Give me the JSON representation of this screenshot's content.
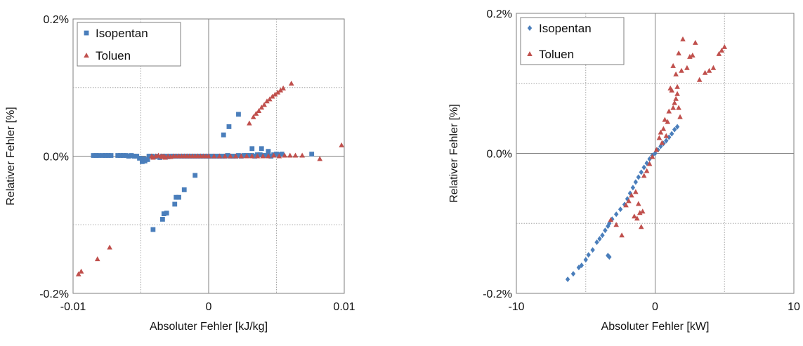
{
  "chart_data": [
    {
      "type": "scatter",
      "xlabel": "Absoluter Fehler [kJ/kg]",
      "ylabel": "Relativer Fehler [%]",
      "xlim": [
        -0.01,
        0.01
      ],
      "ylim": [
        -0.2,
        0.2
      ],
      "x_ticks": [
        "-0.01",
        "0",
        "0.01"
      ],
      "y_ticks": [
        "0.2%",
        "0.0%",
        "-0.2%"
      ],
      "grid": "dotted",
      "legend_position": "top-left",
      "series": [
        {
          "name": "Isopentan",
          "marker": "square",
          "color": "#4a7ebb",
          "points": [
            [
              -0.0085,
              0.001
            ],
            [
              -0.0083,
              0.001
            ],
            [
              -0.0081,
              0.001
            ],
            [
              -0.0078,
              0.001
            ],
            [
              -0.0076,
              0.001
            ],
            [
              -0.0074,
              0.001
            ],
            [
              -0.0072,
              0.001
            ],
            [
              -0.0067,
              0.001
            ],
            [
              -0.0065,
              0.001
            ],
            [
              -0.0063,
              0.001
            ],
            [
              -0.0061,
              0.001
            ],
            [
              -0.0059,
              0.0
            ],
            [
              -0.0057,
              0.001
            ],
            [
              -0.0055,
              0.0
            ],
            [
              -0.0053,
              0.0
            ],
            [
              -0.0051,
              -0.003
            ],
            [
              -0.0049,
              -0.008
            ],
            [
              -0.0048,
              -0.004
            ],
            [
              -0.0047,
              -0.007
            ],
            [
              -0.0045,
              -0.005
            ],
            [
              -0.0044,
              0.0
            ],
            [
              -0.0042,
              0.0
            ],
            [
              -0.004,
              -0.001
            ],
            [
              -0.0038,
              0.0
            ],
            [
              -0.0036,
              -0.002
            ],
            [
              -0.0034,
              0.0
            ],
            [
              -0.0032,
              0.0
            ],
            [
              -0.003,
              -0.001
            ],
            [
              -0.0028,
              0.0
            ],
            [
              -0.0026,
              0.0
            ],
            [
              -0.0024,
              0.0
            ],
            [
              -0.0022,
              0.0
            ],
            [
              -0.002,
              0.0
            ],
            [
              -0.0018,
              0.0
            ],
            [
              -0.0016,
              0.0
            ],
            [
              -0.0014,
              0.0
            ],
            [
              -0.0012,
              0.0
            ],
            [
              -0.001,
              0.0
            ],
            [
              -0.0008,
              0.0
            ],
            [
              -0.0006,
              0.0
            ],
            [
              -0.0004,
              0.0
            ],
            [
              -0.0002,
              0.0
            ],
            [
              0.0,
              0.0
            ],
            [
              0.0002,
              0.0
            ],
            [
              0.0004,
              0.0
            ],
            [
              0.0006,
              0.0
            ],
            [
              0.0008,
              0.0
            ],
            [
              0.001,
              0.0
            ],
            [
              0.0012,
              0.0
            ],
            [
              0.0014,
              0.001
            ],
            [
              0.0016,
              0.0
            ],
            [
              0.0018,
              0.0
            ],
            [
              0.002,
              0.0
            ],
            [
              0.0022,
              0.001
            ],
            [
              0.0024,
              0.0
            ],
            [
              0.0026,
              0.001
            ],
            [
              0.0028,
              0.001
            ],
            [
              0.003,
              0.001
            ],
            [
              0.0032,
              0.001
            ],
            [
              0.0034,
              0.0
            ],
            [
              0.0036,
              0.002
            ],
            [
              0.0038,
              0.002
            ],
            [
              0.004,
              0.001
            ],
            [
              0.0042,
              0.001
            ],
            [
              0.0044,
              0.001
            ],
            [
              0.0046,
              0.0
            ],
            [
              0.0048,
              0.002
            ],
            [
              0.005,
              0.003
            ],
            [
              0.0052,
              0.002
            ],
            [
              0.0054,
              0.003
            ],
            [
              0.0076,
              0.003
            ],
            [
              0.0011,
              0.031
            ],
            [
              0.0015,
              0.043
            ],
            [
              0.0022,
              0.061
            ],
            [
              0.0032,
              0.011
            ],
            [
              0.0039,
              0.011
            ],
            [
              0.0044,
              0.007
            ],
            [
              -0.0041,
              -0.107
            ],
            [
              -0.0034,
              -0.092
            ],
            [
              -0.0033,
              -0.084
            ],
            [
              -0.0031,
              -0.083
            ],
            [
              -0.0025,
              -0.07
            ],
            [
              -0.0024,
              -0.06
            ],
            [
              -0.0022,
              -0.06
            ],
            [
              -0.0018,
              -0.049
            ],
            [
              -0.001,
              -0.028
            ]
          ]
        },
        {
          "name": "Toluen",
          "marker": "triangle",
          "color": "#c0504d",
          "points": [
            [
              -0.0096,
              -0.172
            ],
            [
              -0.0094,
              -0.168
            ],
            [
              -0.0082,
              -0.15
            ],
            [
              -0.0073,
              -0.133
            ],
            [
              -0.0042,
              0.0
            ],
            [
              -0.0041,
              -0.002
            ],
            [
              -0.0039,
              0.0
            ],
            [
              -0.0037,
              0.001
            ],
            [
              -0.0035,
              0.0
            ],
            [
              -0.0034,
              -0.001
            ],
            [
              -0.0033,
              0.0
            ],
            [
              -0.0032,
              -0.002
            ],
            [
              -0.003,
              0.0
            ],
            [
              -0.0028,
              -0.001
            ],
            [
              -0.0026,
              0.0
            ],
            [
              -0.0024,
              0.0
            ],
            [
              -0.0022,
              0.0
            ],
            [
              -0.002,
              0.0
            ],
            [
              -0.0018,
              0.0
            ],
            [
              -0.0016,
              0.0
            ],
            [
              -0.0014,
              0.0
            ],
            [
              -0.0012,
              0.0
            ],
            [
              -0.001,
              0.0
            ],
            [
              -0.0008,
              0.0
            ],
            [
              -0.0006,
              0.0
            ],
            [
              -0.0004,
              0.0
            ],
            [
              -0.0002,
              0.0
            ],
            [
              0.0,
              0.0
            ],
            [
              0.0004,
              0.0
            ],
            [
              0.0008,
              0.0
            ],
            [
              0.0012,
              0.0
            ],
            [
              0.0016,
              0.0
            ],
            [
              0.002,
              0.0
            ],
            [
              0.0024,
              0.0
            ],
            [
              0.0028,
              0.0
            ],
            [
              0.0032,
              0.0
            ],
            [
              0.0036,
              0.0
            ],
            [
              0.004,
              0.0
            ],
            [
              0.0044,
              0.0
            ],
            [
              0.0048,
              0.001
            ],
            [
              0.0052,
              0.0
            ],
            [
              0.0056,
              0.001
            ],
            [
              0.006,
              0.001
            ],
            [
              0.0064,
              0.001
            ],
            [
              0.0069,
              0.001
            ],
            [
              0.0082,
              -0.004
            ],
            [
              0.0098,
              0.016
            ],
            [
              0.003,
              0.048
            ],
            [
              0.0033,
              0.057
            ],
            [
              0.0035,
              0.062
            ],
            [
              0.0037,
              0.066
            ],
            [
              0.0039,
              0.071
            ],
            [
              0.0041,
              0.075
            ],
            [
              0.0043,
              0.08
            ],
            [
              0.0045,
              0.083
            ],
            [
              0.0047,
              0.087
            ],
            [
              0.0049,
              0.09
            ],
            [
              0.0051,
              0.093
            ],
            [
              0.0053,
              0.096
            ],
            [
              0.0055,
              0.099
            ],
            [
              0.0061,
              0.106
            ]
          ]
        }
      ]
    },
    {
      "type": "scatter",
      "xlabel": "Absoluter Fehler [kW]",
      "ylabel": "Relativer Fehler [%]",
      "xlim": [
        -10,
        10
      ],
      "ylim": [
        -0.2,
        0.2
      ],
      "x_ticks": [
        "-10",
        "0",
        "10"
      ],
      "y_ticks": [
        "0.2%",
        "0.0%",
        "-0.2%"
      ],
      "grid": "dotted",
      "legend_position": "top-left",
      "series": [
        {
          "name": "Isopentan",
          "marker": "diamond",
          "color": "#4a7ebb",
          "points": [
            [
              -6.3,
              -0.18
            ],
            [
              -5.9,
              -0.172
            ],
            [
              -5.5,
              -0.163
            ],
            [
              -5.3,
              -0.16
            ],
            [
              -5.0,
              -0.152
            ],
            [
              -4.8,
              -0.145
            ],
            [
              -4.5,
              -0.138
            ],
            [
              -4.2,
              -0.127
            ],
            [
              -4.0,
              -0.122
            ],
            [
              -3.8,
              -0.117
            ],
            [
              -3.6,
              -0.11
            ],
            [
              -3.4,
              -0.104
            ],
            [
              -3.3,
              -0.1
            ],
            [
              -3.1,
              -0.094
            ],
            [
              -3.4,
              -0.146
            ],
            [
              -3.3,
              -0.148
            ],
            [
              -2.8,
              -0.087
            ],
            [
              -2.5,
              -0.08
            ],
            [
              -2.2,
              -0.073
            ],
            [
              -2.0,
              -0.065
            ],
            [
              -1.8,
              -0.057
            ],
            [
              -1.6,
              -0.049
            ],
            [
              -1.4,
              -0.041
            ],
            [
              -1.2,
              -0.034
            ],
            [
              -1.0,
              -0.027
            ],
            [
              -0.8,
              -0.02
            ],
            [
              -0.6,
              -0.014
            ],
            [
              -0.4,
              -0.008
            ],
            [
              -0.2,
              -0.003
            ],
            [
              0.0,
              0.0
            ],
            [
              0.2,
              0.005
            ],
            [
              0.4,
              0.01
            ],
            [
              0.6,
              0.014
            ],
            [
              0.8,
              0.018
            ],
            [
              1.0,
              0.023
            ],
            [
              1.2,
              0.028
            ],
            [
              1.4,
              0.034
            ],
            [
              1.6,
              0.038
            ]
          ]
        },
        {
          "name": "Toluen",
          "marker": "triangle",
          "color": "#c0504d",
          "points": [
            [
              -3.2,
              -0.095
            ],
            [
              -2.8,
              -0.102
            ],
            [
              -2.4,
              -0.117
            ],
            [
              -2.1,
              -0.074
            ],
            [
              -1.9,
              -0.068
            ],
            [
              -1.7,
              -0.06
            ],
            [
              -1.5,
              -0.09
            ],
            [
              -1.4,
              -0.055
            ],
            [
              -1.3,
              -0.093
            ],
            [
              -1.2,
              -0.072
            ],
            [
              -1.1,
              -0.085
            ],
            [
              -1.0,
              -0.105
            ],
            [
              -0.9,
              -0.083
            ],
            [
              -0.8,
              -0.032
            ],
            [
              -0.6,
              -0.025
            ],
            [
              -0.4,
              -0.015
            ],
            [
              -0.2,
              -0.005
            ],
            [
              0.1,
              0.005
            ],
            [
              0.3,
              0.022
            ],
            [
              0.4,
              0.03
            ],
            [
              0.5,
              0.015
            ],
            [
              0.6,
              0.035
            ],
            [
              0.7,
              0.048
            ],
            [
              0.8,
              0.025
            ],
            [
              0.9,
              0.045
            ],
            [
              1.0,
              0.06
            ],
            [
              1.1,
              0.093
            ],
            [
              1.2,
              0.09
            ],
            [
              1.3,
              0.065
            ],
            [
              1.4,
              0.072
            ],
            [
              1.5,
              0.078
            ],
            [
              1.6,
              0.085
            ],
            [
              1.7,
              0.065
            ],
            [
              1.8,
              0.052
            ],
            [
              1.3,
              0.125
            ],
            [
              1.5,
              0.113
            ],
            [
              1.6,
              0.095
            ],
            [
              1.7,
              0.143
            ],
            [
              1.9,
              0.118
            ],
            [
              2.0,
              0.163
            ],
            [
              2.3,
              0.122
            ],
            [
              2.5,
              0.138
            ],
            [
              2.7,
              0.14
            ],
            [
              2.9,
              0.158
            ],
            [
              3.2,
              0.105
            ],
            [
              3.6,
              0.115
            ],
            [
              3.9,
              0.118
            ],
            [
              4.2,
              0.122
            ],
            [
              4.6,
              0.142
            ],
            [
              4.8,
              0.147
            ],
            [
              5.0,
              0.152
            ]
          ]
        }
      ]
    }
  ]
}
